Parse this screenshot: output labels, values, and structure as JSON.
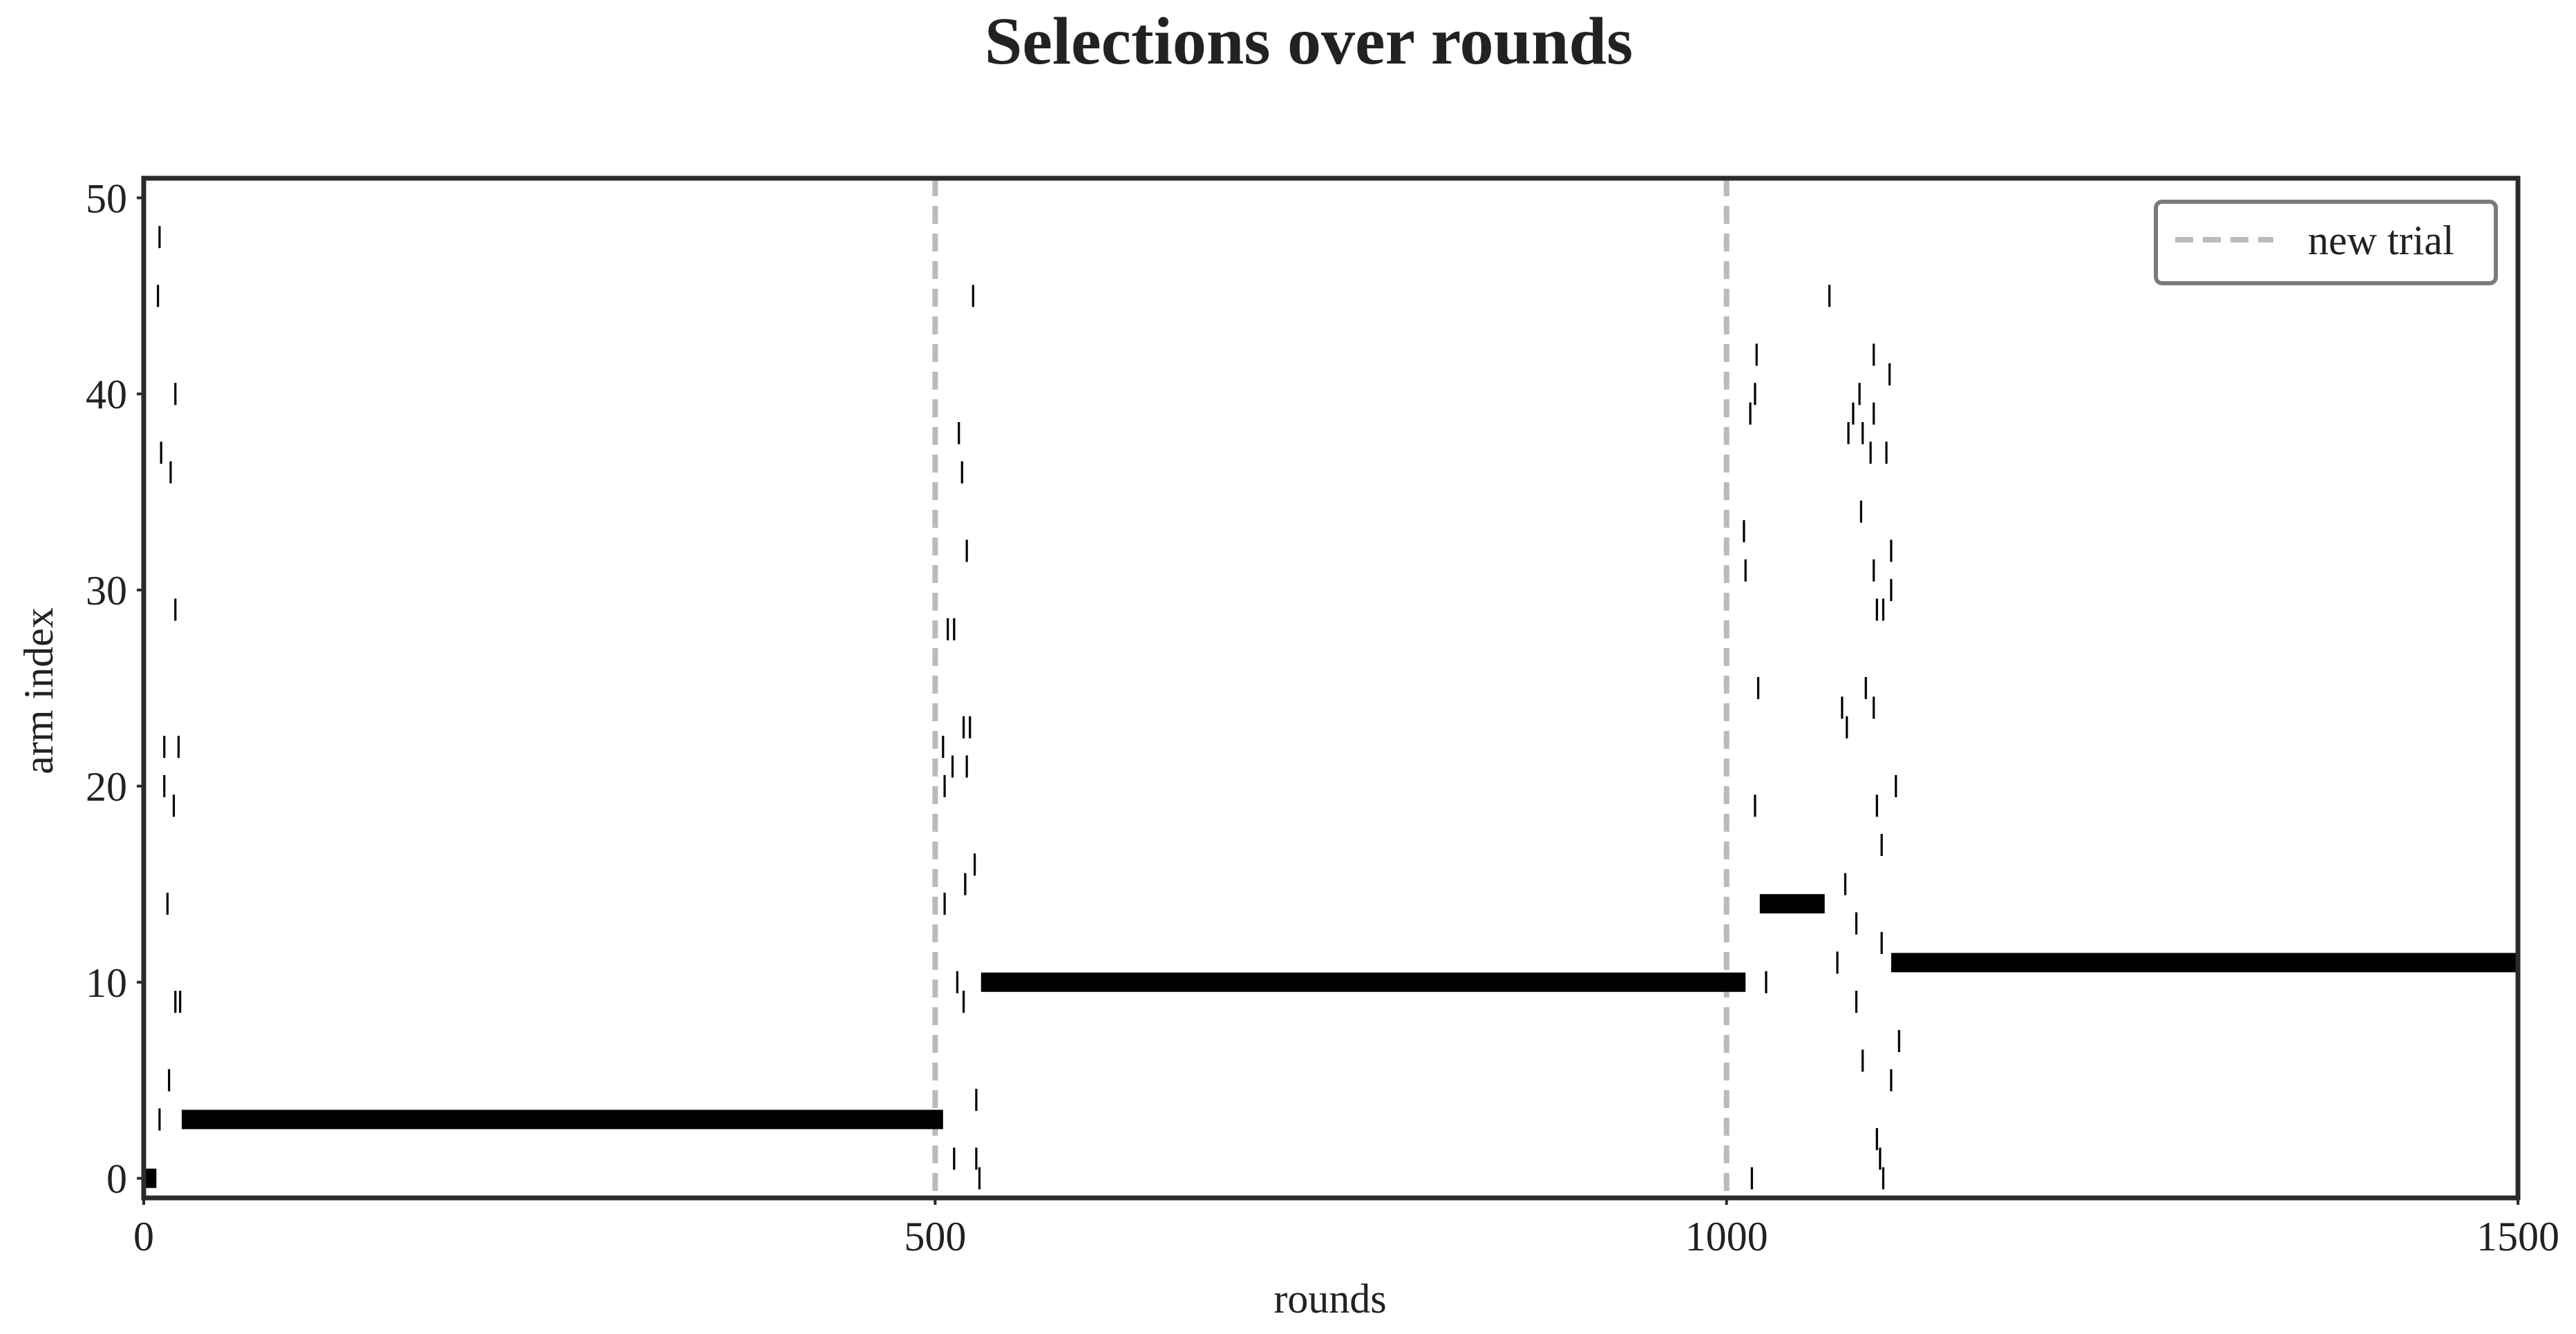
{
  "chart_data": {
    "type": "scatter",
    "title": "Selections over rounds",
    "xlabel": "rounds",
    "ylabel": "arm index",
    "xlim": [
      0,
      1500
    ],
    "ylim": [
      -1,
      51
    ],
    "x_ticks": [
      0,
      500,
      1000,
      1500
    ],
    "x_tick_labels": [
      "0",
      "500",
      "1000",
      "1500"
    ],
    "y_ticks": [
      0,
      10,
      20,
      30,
      40,
      50
    ],
    "y_tick_labels": [
      "0",
      "10",
      "20",
      "30",
      "40",
      "50"
    ],
    "grid": false,
    "legend": {
      "position": "top-right",
      "entries": [
        {
          "label": "new trial",
          "style": "dashed",
          "color": "#bbbbbb"
        }
      ]
    },
    "trial_boundaries": [
      500,
      1000
    ],
    "series": [
      {
        "marker": "vertical tick",
        "color": "#000000",
        "segments": [
          {
            "arm": 0,
            "from": 0,
            "to": 8
          },
          {
            "arm": 3,
            "from": 24,
            "to": 505
          },
          {
            "arm": 10,
            "from": 529,
            "to": 1012
          },
          {
            "arm": 14,
            "from": 1021,
            "to": 1062
          },
          {
            "arm": 11,
            "from": 1104,
            "to": 1500
          }
        ],
        "points": [
          {
            "x": 10,
            "y": 48
          },
          {
            "x": 9,
            "y": 45
          },
          {
            "x": 20,
            "y": 40
          },
          {
            "x": 11,
            "y": 37
          },
          {
            "x": 17,
            "y": 36
          },
          {
            "x": 20,
            "y": 29
          },
          {
            "x": 13,
            "y": 22
          },
          {
            "x": 22,
            "y": 22
          },
          {
            "x": 13,
            "y": 20
          },
          {
            "x": 19,
            "y": 19
          },
          {
            "x": 15,
            "y": 14
          },
          {
            "x": 20,
            "y": 9
          },
          {
            "x": 23,
            "y": 9
          },
          {
            "x": 16,
            "y": 5
          },
          {
            "x": 10,
            "y": 3
          },
          {
            "x": 524,
            "y": 45
          },
          {
            "x": 515,
            "y": 38
          },
          {
            "x": 517,
            "y": 36
          },
          {
            "x": 520,
            "y": 32
          },
          {
            "x": 508,
            "y": 28
          },
          {
            "x": 512,
            "y": 28
          },
          {
            "x": 518,
            "y": 23
          },
          {
            "x": 522,
            "y": 23
          },
          {
            "x": 505,
            "y": 22
          },
          {
            "x": 511,
            "y": 21
          },
          {
            "x": 520,
            "y": 21
          },
          {
            "x": 506,
            "y": 20
          },
          {
            "x": 525,
            "y": 16
          },
          {
            "x": 519,
            "y": 15
          },
          {
            "x": 506,
            "y": 14
          },
          {
            "x": 514,
            "y": 10
          },
          {
            "x": 518,
            "y": 9
          },
          {
            "x": 526,
            "y": 4
          },
          {
            "x": 512,
            "y": 1
          },
          {
            "x": 526,
            "y": 1
          },
          {
            "x": 528,
            "y": 0
          },
          {
            "x": 1065,
            "y": 45
          },
          {
            "x": 1019,
            "y": 42
          },
          {
            "x": 1018,
            "y": 40
          },
          {
            "x": 1015,
            "y": 39
          },
          {
            "x": 1011,
            "y": 33
          },
          {
            "x": 1012,
            "y": 31
          },
          {
            "x": 1020,
            "y": 25
          },
          {
            "x": 1018,
            "y": 19
          },
          {
            "x": 1016,
            "y": 0
          },
          {
            "x": 1093,
            "y": 42
          },
          {
            "x": 1103,
            "y": 41
          },
          {
            "x": 1084,
            "y": 40
          },
          {
            "x": 1080,
            "y": 39
          },
          {
            "x": 1093,
            "y": 39
          },
          {
            "x": 1077,
            "y": 38
          },
          {
            "x": 1086,
            "y": 38
          },
          {
            "x": 1091,
            "y": 37
          },
          {
            "x": 1101,
            "y": 37
          },
          {
            "x": 1085,
            "y": 34
          },
          {
            "x": 1104,
            "y": 32
          },
          {
            "x": 1093,
            "y": 31
          },
          {
            "x": 1104,
            "y": 30
          },
          {
            "x": 1095,
            "y": 29
          },
          {
            "x": 1099,
            "y": 29
          },
          {
            "x": 1088,
            "y": 25
          },
          {
            "x": 1073,
            "y": 24
          },
          {
            "x": 1093,
            "y": 24
          },
          {
            "x": 1076,
            "y": 23
          },
          {
            "x": 1107,
            "y": 20
          },
          {
            "x": 1095,
            "y": 19
          },
          {
            "x": 1098,
            "y": 17
          },
          {
            "x": 1075,
            "y": 15
          },
          {
            "x": 1082,
            "y": 13
          },
          {
            "x": 1098,
            "y": 12
          },
          {
            "x": 1070,
            "y": 11
          },
          {
            "x": 1082,
            "y": 9
          },
          {
            "x": 1025,
            "y": 10
          },
          {
            "x": 1109,
            "y": 7
          },
          {
            "x": 1086,
            "y": 6
          },
          {
            "x": 1104,
            "y": 5
          },
          {
            "x": 1095,
            "y": 2
          },
          {
            "x": 1097,
            "y": 1
          },
          {
            "x": 1099,
            "y": 0
          }
        ]
      }
    ]
  }
}
